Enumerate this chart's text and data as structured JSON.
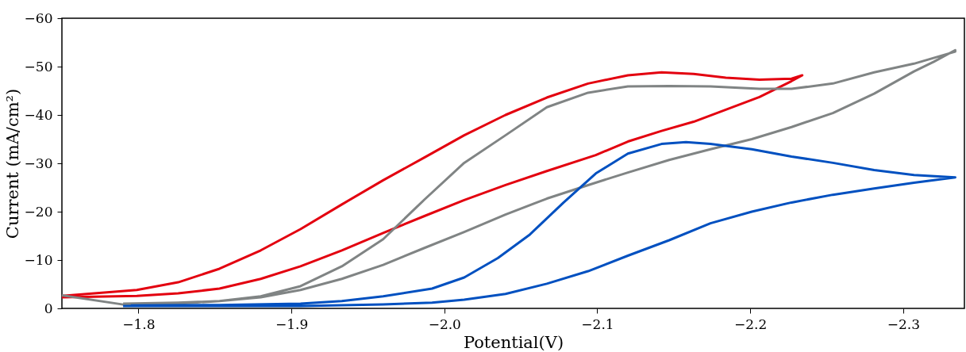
{
  "chart_data": {
    "type": "line",
    "xlabel": "Potential(V)",
    "ylabel": "Current (mA/cm²)",
    "xlim": [
      -1.75,
      -2.34
    ],
    "ylim": [
      0,
      -60
    ],
    "xticks": [
      -1.8,
      -1.9,
      {
        "value": -2.0,
        "label": "−2.0"
      },
      -2.1,
      -2.2,
      -2.3
    ],
    "yticks": [
      0,
      -10,
      -20,
      -30,
      -40,
      -50,
      -60
    ],
    "grid": false,
    "legend": false,
    "marker": "none",
    "line_style": "solid",
    "series": [
      {
        "color": "#e3000f",
        "x": [
          -1.75,
          -1.799,
          -1.826,
          -1.853,
          -1.88,
          -1.906,
          -1.933,
          -1.96,
          -1.987,
          -2.013,
          -2.04,
          -2.067,
          -2.094,
          -2.12,
          -2.142,
          -2.163,
          -2.184,
          -2.206,
          -2.227,
          -2.234,
          -2.227,
          -2.206,
          -2.184,
          -2.163,
          -2.142,
          -2.12,
          -2.099,
          -2.067,
          -2.04,
          -2.013,
          -1.987,
          -1.96,
          -1.933,
          -1.906,
          -1.88,
          -1.853,
          -1.826,
          -1.799,
          -1.75
        ],
        "values": [
          -2.6,
          -3.8,
          -5.4,
          -8.2,
          -12,
          -16.4,
          -21.5,
          -26.5,
          -31.2,
          -35.8,
          -40,
          -43.6,
          -46.5,
          -48.2,
          -48.8,
          -48.5,
          -47.7,
          -47.3,
          -47.5,
          -48.2,
          -47,
          -43.7,
          -41.1,
          -38.6,
          -36.7,
          -34.5,
          -31.7,
          -28.4,
          -25.5,
          -22.4,
          -19.1,
          -15.6,
          -12,
          -8.7,
          -6.1,
          -4.1,
          -3.1,
          -2.6,
          -2.3
        ]
      },
      {
        "color": "#808484",
        "x": [
          -1.75,
          -1.79,
          -1.826,
          -1.853,
          -1.88,
          -1.906,
          -1.933,
          -1.96,
          -1.987,
          -2.013,
          -2.04,
          -2.067,
          -2.094,
          -2.12,
          -2.147,
          -2.174,
          -2.201,
          -2.227,
          -2.254,
          -2.281,
          -2.307,
          -2.32,
          -2.334,
          -2.334,
          -2.307,
          -2.281,
          -2.254,
          -2.227,
          -2.206,
          -2.174,
          -2.147,
          -2.12,
          -2.094,
          -2.067,
          -2.04,
          -2.013,
          -1.987,
          -1.96,
          -1.933,
          -1.906,
          -1.88,
          -1.853,
          -1.826,
          -1.79
        ],
        "values": [
          -2.7,
          -0.8,
          -1,
          -1.5,
          -2.3,
          -3.8,
          -6.1,
          -9,
          -12.5,
          -15.8,
          -19.4,
          -22.7,
          -25.5,
          -28.1,
          -30.7,
          -32.9,
          -35,
          -37.5,
          -40.4,
          -44.4,
          -49,
          -51,
          -53.4,
          -53.1,
          -50.6,
          -48.8,
          -46.5,
          -45.4,
          -45.4,
          -45.9,
          -46,
          -45.9,
          -44.6,
          -41.6,
          -35.8,
          -30.1,
          -22.5,
          -14.3,
          -8.7,
          -4.6,
          -2.5,
          -1.5,
          -1.2,
          -1
        ]
      },
      {
        "color": "#0050c0",
        "x": [
          -1.79,
          -1.853,
          -1.906,
          -1.96,
          -1.992,
          -2.013,
          -2.04,
          -2.067,
          -2.094,
          -2.12,
          -2.147,
          -2.174,
          -2.201,
          -2.227,
          -2.254,
          -2.281,
          -2.307,
          -2.334,
          -2.307,
          -2.281,
          -2.254,
          -2.227,
          -2.201,
          -2.174,
          -2.158,
          -2.142,
          -2.12,
          -2.099,
          -2.078,
          -2.056,
          -2.035,
          -2.013,
          -1.992,
          -1.96,
          -1.933,
          -1.906,
          -1.853,
          -1.795
        ],
        "values": [
          -0.5,
          -0.5,
          -0.5,
          -0.8,
          -1.2,
          -1.8,
          -3,
          -5.1,
          -7.7,
          -10.9,
          -14.1,
          -17.6,
          -20,
          -21.9,
          -23.5,
          -24.8,
          -26,
          -27.1,
          -27.6,
          -28.6,
          -30.1,
          -31.4,
          -32.9,
          -34,
          -34.4,
          -34,
          -32,
          -27.9,
          -21.9,
          -15.3,
          -10.4,
          -6.4,
          -4.1,
          -2.5,
          -1.5,
          -1,
          -0.7,
          -0.6
        ]
      }
    ]
  }
}
